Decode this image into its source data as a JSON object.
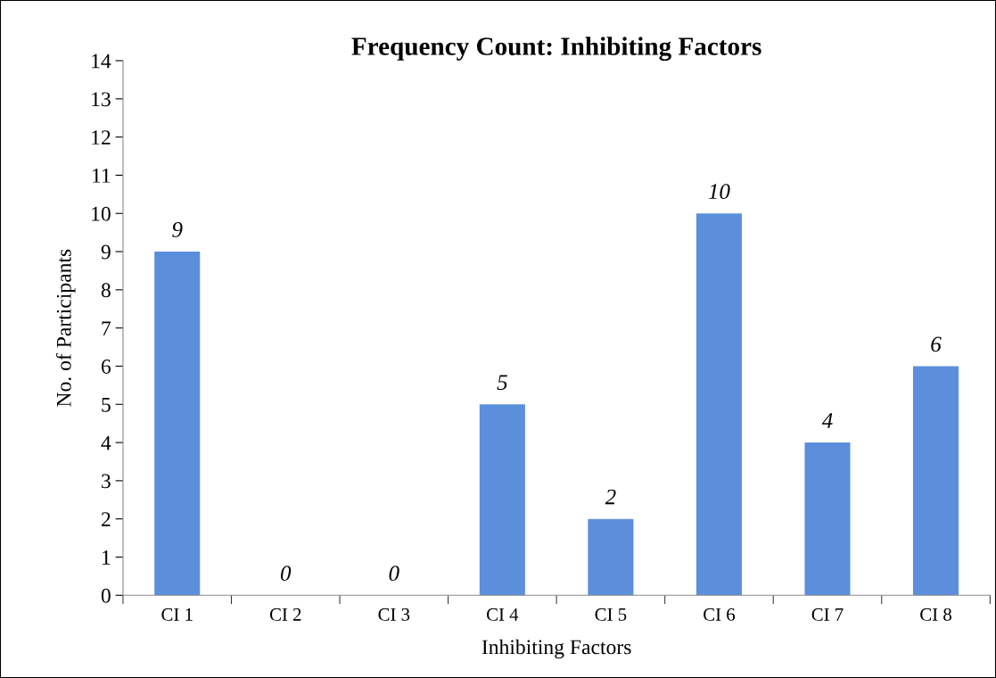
{
  "chart_data": {
    "type": "bar",
    "title": "Frequency Count: Inhibiting Factors",
    "xlabel": "Inhibiting Factors",
    "ylabel": "No. of Participants",
    "categories": [
      "CI 1",
      "CI 2",
      "CI 3",
      "CI 4",
      "CI 5",
      "CI 6",
      "CI 7",
      "CI 8"
    ],
    "values": [
      9,
      0,
      0,
      5,
      2,
      10,
      4,
      6
    ],
    "color": "#5b8fdc",
    "ylim": [
      0,
      14
    ],
    "yticks": [
      0,
      1,
      2,
      3,
      4,
      5,
      6,
      7,
      8,
      9,
      10,
      11,
      12,
      13,
      14
    ],
    "grid": false,
    "data_labels": true,
    "legend": false
  }
}
